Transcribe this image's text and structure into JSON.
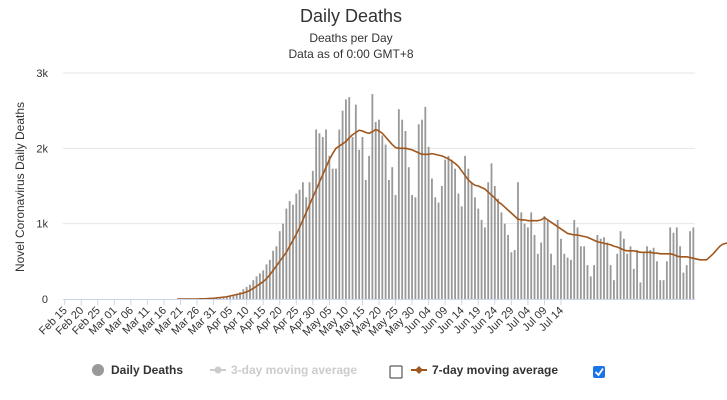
{
  "chart_data": {
    "type": "bar",
    "title": "Daily Deaths",
    "subtitle_line1": "Deaths per Day",
    "subtitle_line2": "Data as of 0:00 GMT+8",
    "ylabel": "Novel Coronavirus Daily Deaths",
    "xlabel": "",
    "ylim": [
      0,
      3000
    ],
    "yticks": [
      0,
      1000,
      2000,
      3000
    ],
    "ytick_labels": [
      "0",
      "1k",
      "2k",
      "3k"
    ],
    "grid": "horizontal",
    "x_start": "Feb 15",
    "x_tick_labels": [
      "Feb 15",
      "Feb 20",
      "Feb 25",
      "Mar 01",
      "Mar 06",
      "Mar 11",
      "Mar 16",
      "Mar 21",
      "Mar 26",
      "Mar 31",
      "Apr 05",
      "Apr 10",
      "Apr 15",
      "Apr 20",
      "Apr 25",
      "Apr 30",
      "May 05",
      "May 10",
      "May 15",
      "May 20",
      "May 25",
      "May 30",
      "Jun 04",
      "Jun 09",
      "Jun 14",
      "Jun 19",
      "Jun 24",
      "Jun 29",
      "Jul 04",
      "Jul 09",
      "Jul 14"
    ],
    "colors": {
      "bars": "#999999",
      "ma7": "#a0571e",
      "ma3": "#cccccc",
      "grid": "#e6e6e6",
      "checkbox": "#1a73e8"
    },
    "series": [
      {
        "name": "Daily Deaths",
        "type": "bar",
        "values": [
          0,
          0,
          0,
          0,
          0,
          0,
          0,
          0,
          0,
          0,
          0,
          0,
          0,
          0,
          0,
          0,
          0,
          0,
          0,
          0,
          0,
          0,
          0,
          0,
          0,
          0,
          0,
          0,
          0,
          0,
          0,
          0,
          0,
          0,
          0,
          0,
          0,
          0,
          0,
          0,
          0,
          0,
          0,
          0,
          5,
          10,
          15,
          22,
          30,
          35,
          45,
          58,
          70,
          90,
          130,
          160,
          190,
          250,
          300,
          340,
          380,
          460,
          520,
          640,
          700,
          900,
          1000,
          1200,
          1300,
          1250,
          1400,
          1450,
          1550,
          1350,
          1550,
          1700,
          2250,
          2200,
          2150,
          2250,
          1900,
          1730,
          1730,
          2250,
          2500,
          2650,
          2680,
          2150,
          2580,
          1980,
          2150,
          1580,
          1900,
          2720,
          2350,
          2380,
          2170,
          2050,
          1580,
          1750,
          1380,
          2520,
          2380,
          2230,
          1750,
          1380,
          1350,
          2320,
          2380,
          2550,
          2020,
          1600,
          1350,
          1280,
          1500,
          1850,
          1900,
          1850,
          1730,
          1400,
          1230,
          1900,
          1730,
          1550,
          1350,
          1200,
          1050,
          950,
          1550,
          1800,
          1500,
          1330,
          1150,
          1000,
          850,
          620,
          650,
          1550,
          1150,
          1000,
          950,
          1150,
          850,
          600,
          750,
          1100,
          1050,
          600,
          450,
          1050,
          800,
          600,
          550,
          520,
          1050,
          950,
          700,
          700,
          450,
          300,
          450,
          850,
          800,
          820,
          750,
          450,
          250,
          600,
          900,
          800,
          600,
          700,
          400,
          650,
          220,
          620,
          700,
          650,
          680,
          500,
          250,
          250,
          500,
          950,
          880,
          950,
          700,
          350,
          450,
          900,
          950
        ]
      },
      {
        "name": "3-day moving average",
        "type": "line",
        "visible": false,
        "values": []
      },
      {
        "name": "7-day moving average",
        "type": "line",
        "values": [
          null,
          null,
          null,
          null,
          null,
          null,
          null,
          null,
          null,
          null,
          null,
          null,
          null,
          null,
          null,
          null,
          null,
          null,
          null,
          null,
          null,
          null,
          null,
          null,
          null,
          null,
          null,
          null,
          null,
          null,
          null,
          null,
          null,
          null,
          0,
          0,
          0,
          0,
          0,
          0,
          0,
          2,
          3,
          5,
          7,
          10,
          15,
          20,
          25,
          30,
          40,
          50,
          60,
          70,
          80,
          95,
          115,
          140,
          170,
          200,
          230,
          270,
          320,
          380,
          440,
          500,
          560,
          620,
          700,
          780,
          860,
          950,
          1050,
          1150,
          1250,
          1350,
          1450,
          1550,
          1650,
          1750,
          1850,
          1930,
          2000,
          2030,
          2060,
          2090,
          2140,
          2180,
          2210,
          2240,
          2230,
          2210,
          2200,
          2220,
          2250,
          2230,
          2200,
          2150,
          2100,
          2050,
          2010,
          2000,
          2000,
          2000,
          1990,
          1980,
          1960,
          1940,
          1920,
          1920,
          1920,
          1930,
          1920,
          1910,
          1900,
          1880,
          1860,
          1830,
          1800,
          1760,
          1700,
          1640,
          1580,
          1540,
          1510,
          1500,
          1480,
          1460,
          1420,
          1380,
          1340,
          1290,
          1260,
          1220,
          1180,
          1140,
          1100,
          1060,
          1050,
          1050,
          1040,
          1040,
          1040,
          1040,
          1050,
          1080,
          1050,
          1020,
          990,
          960,
          930,
          900,
          870,
          860,
          850,
          850,
          840,
          830,
          820,
          800,
          780,
          760,
          750,
          740,
          730,
          720,
          700,
          690,
          670,
          650,
          640,
          640,
          640,
          630,
          620,
          620,
          620,
          620,
          610,
          610,
          600,
          600,
          600,
          600,
          590,
          570,
          560,
          560,
          560,
          550,
          540,
          530,
          520,
          520,
          520,
          560,
          600,
          650,
          700,
          730,
          740,
          750,
          750,
          760,
          770,
          770
        ]
      }
    ],
    "legend": {
      "position": "bottom",
      "items": [
        {
          "label": "Daily Deaths",
          "active": true
        },
        {
          "label": "3-day moving average",
          "active": false
        },
        {
          "label": "7-day moving average",
          "active": true
        }
      ],
      "checkboxes": [
        {
          "checked": false
        },
        {
          "checked": true
        }
      ]
    }
  }
}
